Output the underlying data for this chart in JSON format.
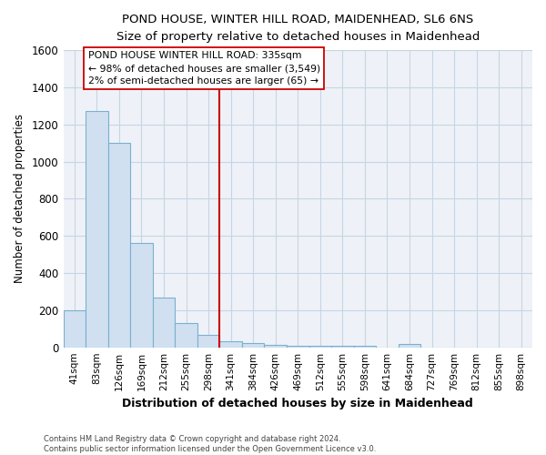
{
  "title": "POND HOUSE, WINTER HILL ROAD, MAIDENHEAD, SL6 6NS",
  "subtitle": "Size of property relative to detached houses in Maidenhead",
  "xlabel": "Distribution of detached houses by size in Maidenhead",
  "ylabel": "Number of detached properties",
  "footer": "Contains HM Land Registry data © Crown copyright and database right 2024.\nContains public sector information licensed under the Open Government Licence v3.0.",
  "bin_labels": [
    "41sqm",
    "83sqm",
    "126sqm",
    "169sqm",
    "212sqm",
    "255sqm",
    "298sqm",
    "341sqm",
    "384sqm",
    "426sqm",
    "469sqm",
    "512sqm",
    "555sqm",
    "598sqm",
    "641sqm",
    "684sqm",
    "727sqm",
    "769sqm",
    "812sqm",
    "855sqm",
    "898sqm"
  ],
  "bar_heights": [
    200,
    1270,
    1100,
    560,
    270,
    130,
    65,
    35,
    25,
    15,
    10,
    10,
    10,
    10,
    0,
    20,
    0,
    0,
    0,
    0,
    0
  ],
  "bar_color": "#d0e0f0",
  "bar_edge_color": "#7ab0d0",
  "vline_color": "#cc0000",
  "annotation_text": "POND HOUSE WINTER HILL ROAD: 335sqm\n← 98% of detached houses are smaller (3,549)\n2% of semi-detached houses are larger (65) →",
  "annotation_box_color": "#ffffff",
  "annotation_box_edge": "#cc0000",
  "ylim": [
    0,
    1600
  ],
  "yticks": [
    0,
    200,
    400,
    600,
    800,
    1000,
    1200,
    1400,
    1600
  ],
  "grid_color": "#c8d4e4",
  "bg_color": "#eef2f8"
}
